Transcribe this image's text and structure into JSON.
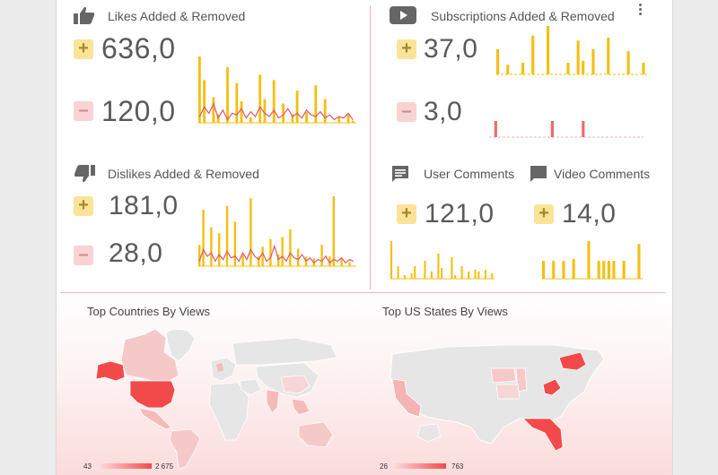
{
  "likes": {
    "title": "Likes Added & Removed",
    "added": "636,0",
    "removed": "120,0",
    "icon": "thumbs-up-icon",
    "bars": [
      62,
      40,
      0,
      24,
      8,
      0,
      52,
      0,
      37,
      20,
      0,
      5,
      0,
      45,
      22,
      0,
      40,
      0,
      18,
      0,
      8,
      30,
      0,
      10,
      0,
      35,
      0,
      22,
      0,
      0,
      5,
      0,
      8,
      2
    ],
    "line": [
      4,
      10,
      6,
      12,
      3,
      8,
      2,
      6,
      5,
      9,
      3,
      7,
      4,
      10,
      6,
      4,
      8,
      3,
      5,
      9,
      4,
      6,
      3,
      8,
      5,
      4,
      7,
      3,
      5,
      2,
      4,
      3,
      6,
      2
    ]
  },
  "subs": {
    "title": "Subscriptions Added & Removed",
    "added": "37,0",
    "removed": "3,0",
    "icon": "youtube-icon",
    "bars": [
      26,
      0,
      10,
      0,
      0,
      12,
      0,
      40,
      0,
      0,
      50,
      0,
      0,
      0,
      12,
      0,
      35,
      14,
      0,
      26,
      0,
      0,
      38,
      0,
      0,
      0,
      24,
      0,
      0,
      12
    ],
    "neg": [
      0,
      1,
      0,
      0,
      0,
      0,
      0,
      0,
      0,
      0,
      0,
      0,
      1,
      0,
      0,
      0,
      0,
      0,
      1,
      0,
      0,
      0,
      0,
      0,
      0,
      0,
      0,
      0,
      0,
      0
    ]
  },
  "dislikes": {
    "title": "Dislikes Added & Removed",
    "added": "181,0",
    "removed": "28,0",
    "icon": "thumbs-down-icon",
    "bars": [
      22,
      58,
      0,
      40,
      0,
      34,
      0,
      62,
      0,
      46,
      0,
      12,
      0,
      70,
      0,
      10,
      20,
      0,
      28,
      0,
      12,
      30,
      0,
      38,
      0,
      18,
      0,
      10,
      0,
      8,
      0,
      22,
      0,
      10,
      72,
      0,
      8,
      0,
      4,
      0
    ],
    "line": [
      3,
      10,
      6,
      8,
      3,
      7,
      4,
      9,
      5,
      6,
      3,
      8,
      4,
      10,
      6,
      4,
      8,
      3,
      5,
      12,
      4,
      6,
      3,
      8,
      5,
      4,
      7,
      3,
      5,
      2,
      4,
      3,
      6,
      2,
      4,
      3,
      5,
      2,
      4,
      3
    ]
  },
  "user_comments": {
    "title": "User Comments",
    "added": "121,0",
    "icon": "comment-icon",
    "bars": [
      42,
      0,
      14,
      0,
      4,
      0,
      6,
      14,
      0,
      0,
      20,
      0,
      8,
      0,
      28,
      12,
      0,
      0,
      24,
      4,
      0,
      14,
      0,
      8,
      0,
      10,
      8,
      0,
      10,
      0,
      6
    ]
  },
  "video_comments": {
    "title": "Video Comments",
    "added": "14,0",
    "icon": "comment-alt-icon",
    "bars": [
      18,
      0,
      18,
      0,
      18,
      0,
      20,
      0,
      0,
      38,
      0,
      18,
      18,
      18,
      18,
      0,
      18,
      0,
      0,
      35
    ]
  },
  "countries": {
    "title": "Top Countries By Views",
    "min": "43",
    "max": "2 675"
  },
  "states": {
    "title": "Top US States By Views",
    "min": "26",
    "max": "763"
  },
  "colors": {
    "bar": "#f5bf10",
    "line": "#e0566e",
    "negbar": "#ef6a6a",
    "accent": "#f24a4a"
  }
}
